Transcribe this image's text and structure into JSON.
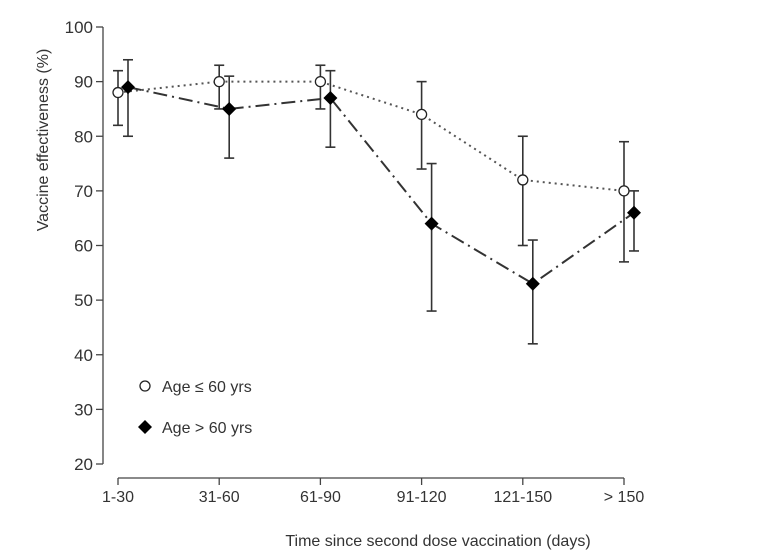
{
  "chart_data": {
    "type": "line",
    "title": "",
    "xlabel": "Time since second dose vaccination (days)",
    "ylabel": "Vaccine effectiveness (%)",
    "ylim": [
      20,
      100
    ],
    "yticks": [
      20,
      30,
      40,
      50,
      60,
      70,
      80,
      90,
      100
    ],
    "categories": [
      "1-30",
      "31-60",
      "61-90",
      "91-120",
      "121-150",
      "> 150"
    ],
    "grid": false,
    "legend_placement": "bottom-left",
    "series": [
      {
        "name": "Age ≤ 60 yrs",
        "marker": "open-circle",
        "line_style": "dotted",
        "values": [
          88,
          90,
          90,
          84,
          72,
          70
        ],
        "lower": [
          82,
          85,
          85,
          74,
          60,
          57
        ],
        "upper": [
          92,
          93,
          93,
          90,
          80,
          79
        ]
      },
      {
        "name": "Age > 60 yrs",
        "marker": "filled-diamond",
        "line_style": "dash-dot",
        "values": [
          89,
          85,
          87,
          64,
          53,
          66
        ],
        "lower": [
          80,
          76,
          78,
          48,
          42,
          59
        ],
        "upper": [
          94,
          91,
          92,
          75,
          61,
          70
        ]
      }
    ]
  }
}
